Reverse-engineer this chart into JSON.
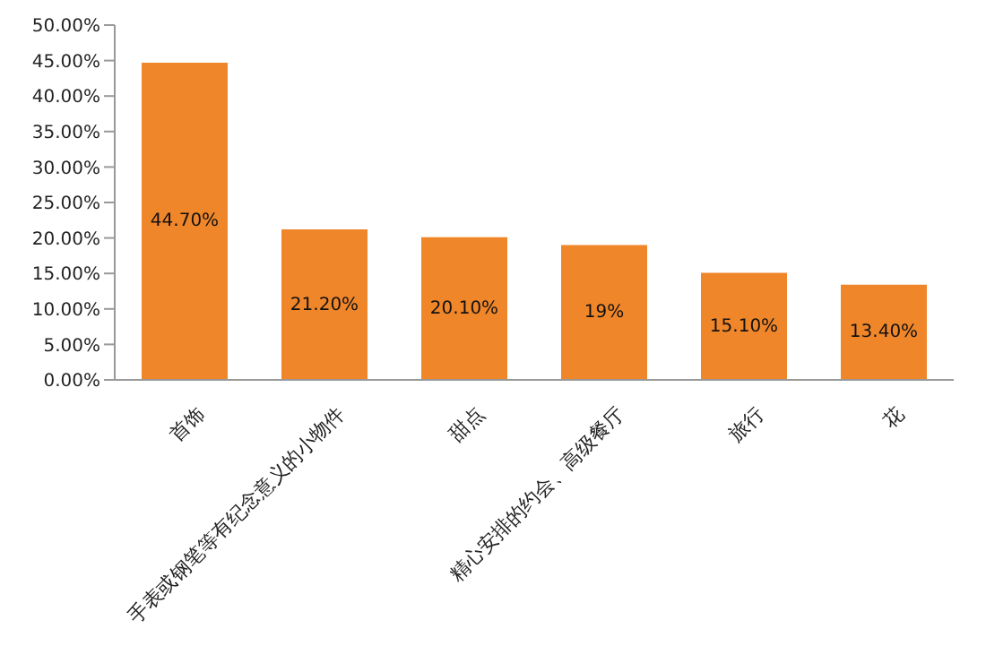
{
  "chart_data": {
    "type": "bar",
    "categories": [
      "首饰",
      "手表或钢笔等有纪念意义的小物件",
      "甜点",
      "精心安排的约会、高级餐厅",
      "旅行",
      "花"
    ],
    "values": [
      44.7,
      21.2,
      20.1,
      19,
      15.1,
      13.4
    ],
    "value_labels": [
      "44.70%",
      "21.20%",
      "20.10%",
      "19%",
      "15.10%",
      "13.40%"
    ],
    "color": "#f0862a",
    "ylim": [
      0,
      50
    ],
    "yticks": [
      {
        "value": 0,
        "label": "0.00%"
      },
      {
        "value": 5,
        "label": "5.00%"
      },
      {
        "value": 10,
        "label": "10.00%"
      },
      {
        "value": 15,
        "label": "15.00%"
      },
      {
        "value": 20,
        "label": "20.00%"
      },
      {
        "value": 25,
        "label": "25.00%"
      },
      {
        "value": 30,
        "label": "30.00%"
      },
      {
        "value": 35,
        "label": "35.00%"
      },
      {
        "value": 40,
        "label": "40.00%"
      },
      {
        "value": 45,
        "label": "45.00%"
      },
      {
        "value": 50,
        "label": "50.00%"
      }
    ],
    "grid": false,
    "legend": false
  }
}
